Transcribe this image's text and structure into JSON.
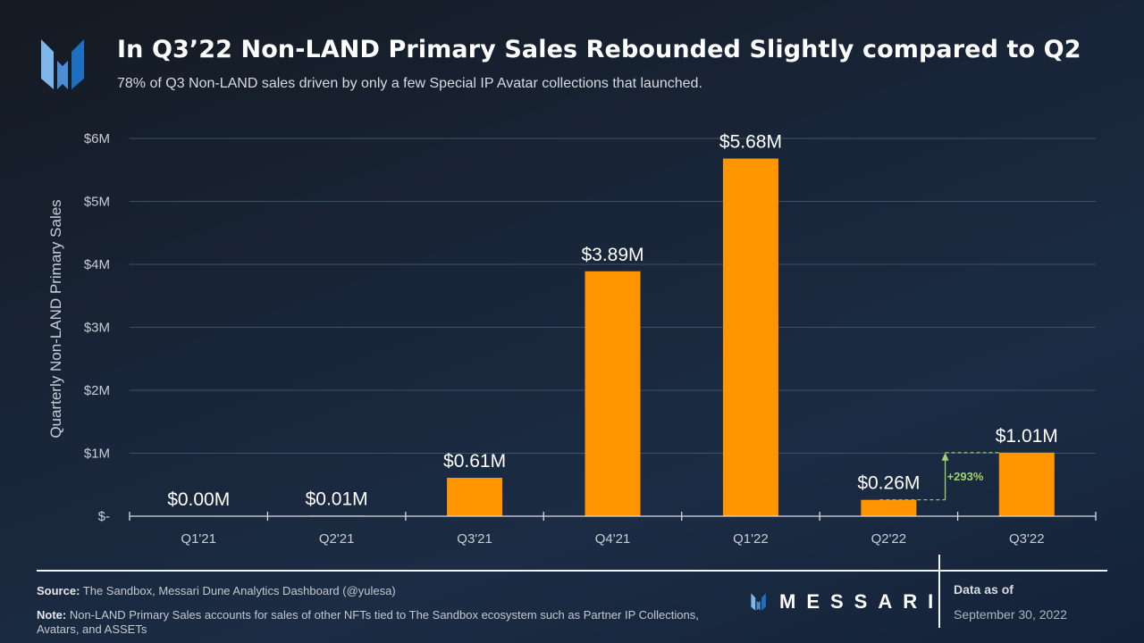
{
  "header": {
    "title": "In Q3’22 Non-LAND Primary Sales Rebounded Slightly compared to Q2",
    "subtitle": "78% of Q3 Non-LAND sales driven by only a few Special IP Avatar collections that launched.",
    "logo_icon": "messari-logo-icon"
  },
  "colors": {
    "bar": "#ff9500",
    "annotation": "#9fd36b",
    "gridline": "#3f5166",
    "axis": "#d8dce1",
    "logo_light": "#7fb7ea",
    "logo_mid": "#4a8fd3",
    "logo_dark": "#1f6fc0"
  },
  "chart_data": {
    "type": "bar",
    "title": "In Q3’22 Non-LAND Primary Sales Rebounded Slightly compared to Q2",
    "xlabel": "",
    "ylabel": "Quarterly Non-LAND  Primary Sales",
    "categories": [
      "Q1'21",
      "Q2'21",
      "Q3'21",
      "Q4'21",
      "Q1'22",
      "Q2'22",
      "Q3'22"
    ],
    "values": [
      0.0,
      0.01,
      0.61,
      3.89,
      5.68,
      0.26,
      1.01
    ],
    "value_units": "USD millions",
    "data_labels": [
      "$0.00M",
      "$0.01M",
      "$0.61M",
      "$3.89M",
      "$5.68M",
      "$0.26M",
      "$1.01M"
    ],
    "ylim": [
      0,
      6
    ],
    "yticks": [
      0,
      1,
      2,
      3,
      4,
      5,
      6
    ],
    "ytick_labels": [
      "$-",
      "$1M",
      "$2M",
      "$3M",
      "$4M",
      "$5M",
      "$6M"
    ],
    "grid": true,
    "legend": "none",
    "annotations": [
      {
        "text": "+293%",
        "from_category": "Q2'22",
        "to_category": "Q3'22",
        "from_value": 0.26,
        "to_value": 1.01,
        "style": "dashed-arrow-up"
      }
    ]
  },
  "footer": {
    "source_label": "Source:",
    "source_text": " The Sandbox, Messari Dune Analytics Dashboard (@yulesa)",
    "note_label": "Note:",
    "note_text": " Non-LAND Primary Sales accounts for sales of other NFTs tied to The Sandbox ecosystem such as Partner IP Collections, Avatars, and ASSETs",
    "brand": "MESSARI",
    "data_as_of_label": "Data as of",
    "data_as_of_date": "September 30, 2022"
  }
}
